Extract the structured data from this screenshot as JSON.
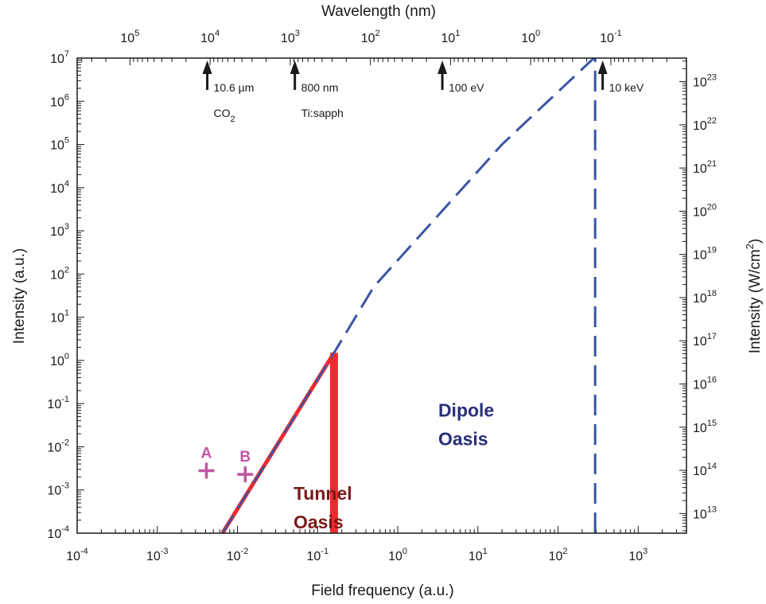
{
  "chart_data": {
    "type": "line",
    "title": "",
    "xlabel": "Field frequency (a.u.)",
    "ylabel": "Intensity (a.u.)",
    "x2label": "Wavelength (nm)",
    "y2label": "Intensity (W/cm",
    "y2label_sup": "2",
    "y2label_close": ")",
    "xscale": "log",
    "yscale": "log",
    "xlim": [
      0.0001,
      4000
    ],
    "ylim": [
      0.0001,
      10000000
    ],
    "grid": false,
    "x_ticks": [
      {
        "base": "10",
        "exp": "-4"
      },
      {
        "base": "10",
        "exp": "-3"
      },
      {
        "base": "10",
        "exp": "-2"
      },
      {
        "base": "10",
        "exp": "-1"
      },
      {
        "base": "10",
        "exp": "0"
      },
      {
        "base": "10",
        "exp": "1"
      },
      {
        "base": "10",
        "exp": "2"
      },
      {
        "base": "10",
        "exp": "3"
      }
    ],
    "y_ticks": [
      {
        "base": "10",
        "exp": "-4"
      },
      {
        "base": "10",
        "exp": "-3"
      },
      {
        "base": "10",
        "exp": "-2"
      },
      {
        "base": "10",
        "exp": "-1"
      },
      {
        "base": "10",
        "exp": "0"
      },
      {
        "base": "10",
        "exp": "1"
      },
      {
        "base": "10",
        "exp": "2"
      },
      {
        "base": "10",
        "exp": "3"
      },
      {
        "base": "10",
        "exp": "4"
      },
      {
        "base": "10",
        "exp": "5"
      },
      {
        "base": "10",
        "exp": "6"
      },
      {
        "base": "10",
        "exp": "7"
      }
    ],
    "top_ticks": [
      {
        "base": "10",
        "exp": "5"
      },
      {
        "base": "10",
        "exp": "4"
      },
      {
        "base": "10",
        "exp": "3"
      },
      {
        "base": "10",
        "exp": "2"
      },
      {
        "base": "10",
        "exp": "1"
      },
      {
        "base": "10",
        "exp": "0"
      },
      {
        "base": "10",
        "exp": "-1"
      }
    ],
    "right_ticks": [
      {
        "base": "10",
        "exp": "13"
      },
      {
        "base": "10",
        "exp": "14"
      },
      {
        "base": "10",
        "exp": "15"
      },
      {
        "base": "10",
        "exp": "16"
      },
      {
        "base": "10",
        "exp": "17"
      },
      {
        "base": "10",
        "exp": "18"
      },
      {
        "base": "10",
        "exp": "19"
      },
      {
        "base": "10",
        "exp": "20"
      },
      {
        "base": "10",
        "exp": "21"
      },
      {
        "base": "10",
        "exp": "22"
      },
      {
        "base": "10",
        "exp": "23"
      }
    ],
    "series": [
      {
        "style": "dashed",
        "color": "#3a55a5",
        "points": [
          [
            0.0065,
            0.0001
          ],
          [
            0.16,
            1.5
          ],
          [
            0.5,
            50
          ],
          [
            20,
            100000
          ],
          [
            280,
            10000000
          ]
        ]
      },
      {
        "style": "dashed-vertical",
        "color": "#3a55a5",
        "points": [
          [
            290,
            0.0001
          ],
          [
            290,
            10000000
          ]
        ]
      },
      {
        "style": "solid",
        "color": "#ee2a2e",
        "points": [
          [
            0.0065,
            0.0001
          ],
          [
            0.16,
            1.5
          ]
        ]
      },
      {
        "style": "thick-vertical",
        "color": "#ee2a2e",
        "points": [
          [
            0.16,
            0.0001
          ],
          [
            0.16,
            1.5
          ]
        ]
      }
    ],
    "arrows": [
      {
        "x": 0.0042,
        "lines": [
          "10.6 µm",
          "CO"
        ],
        "sub": "2"
      },
      {
        "x": 0.052,
        "lines": [
          "800 nm",
          "Ti:sapph"
        ],
        "sub": ""
      },
      {
        "x": 3.6,
        "lines": [
          "100 eV"
        ],
        "sub": ""
      },
      {
        "x": 360,
        "lines": [
          "10 keV"
        ],
        "sub": ""
      }
    ],
    "markers": [
      {
        "label": "A",
        "x": 0.0041,
        "y": 0.0028,
        "color": "#c0569f"
      },
      {
        "label": "B",
        "x": 0.0125,
        "y": 0.0023,
        "color": "#c0569f"
      }
    ],
    "regions": [
      {
        "lines": [
          "Dipole",
          "Oasis"
        ],
        "x": 3.2,
        "y": 0.05,
        "color": "#2a2f7a"
      },
      {
        "lines": [
          "Tunnel",
          "Oasis"
        ],
        "x": 0.05,
        "y": 0.0006,
        "color": "#7a1a1a"
      }
    ]
  }
}
